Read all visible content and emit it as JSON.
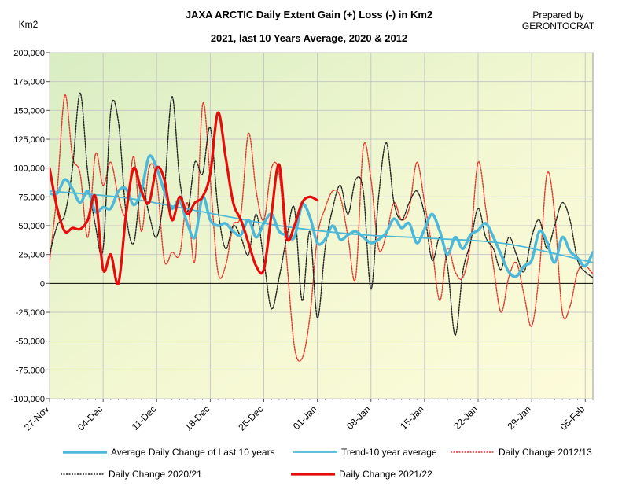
{
  "chart_data": {
    "type": "line",
    "title": "JAXA ARCTIC Daily Extent Gain (+) Loss (-) in Km2",
    "subtitle": "2021, last 10 Years Average, 2020 & 2012",
    "ylabel": "Km2",
    "credit_line1": "Prepared by",
    "credit_line2": "GERONTOCRAT",
    "ylim": [
      -100000,
      200000
    ],
    "xlim": [
      0,
      71
    ],
    "yticks": [
      {
        "v": 200000,
        "label": "200,000"
      },
      {
        "v": 175000,
        "label": "175,000"
      },
      {
        "v": 150000,
        "label": "150,000"
      },
      {
        "v": 125000,
        "label": "125,000"
      },
      {
        "v": 100000,
        "label": "100,000"
      },
      {
        "v": 75000,
        "label": "75,000"
      },
      {
        "v": 50000,
        "label": "50,000"
      },
      {
        "v": 25000,
        "label": "25,000"
      },
      {
        "v": 0,
        "label": "0"
      },
      {
        "v": -25000,
        "label": "-25,000"
      },
      {
        "v": -50000,
        "label": "-50,000"
      },
      {
        "v": -75000,
        "label": "-75,000"
      },
      {
        "v": -100000,
        "label": "-100,000"
      }
    ],
    "xticks": [
      {
        "d": 0,
        "label": "27-Nov"
      },
      {
        "d": 7,
        "label": "04-Dec"
      },
      {
        "d": 14,
        "label": "11-Dec"
      },
      {
        "d": 21,
        "label": "18-Dec"
      },
      {
        "d": 28,
        "label": "25-Dec"
      },
      {
        "d": 35,
        "label": "01-Jan"
      },
      {
        "d": 42,
        "label": "08-Jan"
      },
      {
        "d": 49,
        "label": "15-Jan"
      },
      {
        "d": 56,
        "label": "22-Jan"
      },
      {
        "d": 63,
        "label": "29-Jan"
      },
      {
        "d": 70,
        "label": "05-Feb"
      }
    ],
    "series": [
      {
        "name": "Average Daily Change of Last 10 years",
        "color": "#4db8d8",
        "width": 3.5,
        "dash": "",
        "x": [
          0,
          1,
          2,
          3,
          4,
          5,
          6,
          7,
          8,
          9,
          10,
          11,
          12,
          13,
          14,
          15,
          16,
          17,
          18,
          19,
          20,
          21,
          22,
          23,
          24,
          25,
          26,
          27,
          28,
          29,
          30,
          31,
          32,
          33,
          34,
          35,
          36,
          37,
          38,
          39,
          40,
          41,
          42,
          43,
          44,
          45,
          46,
          47,
          48,
          49,
          50,
          51,
          52,
          53,
          54,
          55,
          56,
          57,
          58,
          59,
          60,
          61,
          62,
          63,
          64,
          65,
          66,
          67,
          68,
          69,
          70,
          71
        ],
        "values": [
          78000,
          78000,
          90000,
          82000,
          70000,
          80000,
          62000,
          66000,
          65000,
          80000,
          82000,
          68000,
          80000,
          110000,
          100000,
          80000,
          65000,
          72000,
          52000,
          40000,
          75000,
          55000,
          50000,
          52000,
          45000,
          42000,
          55000,
          40000,
          52000,
          60000,
          45000,
          42000,
          40000,
          68000,
          58000,
          35000,
          38000,
          50000,
          38000,
          42000,
          45000,
          40000,
          35000,
          38000,
          44000,
          56000,
          48000,
          52000,
          35000,
          47000,
          60000,
          45000,
          25000,
          40000,
          30000,
          42000,
          46000,
          52000,
          40000,
          25000,
          10000,
          6000,
          15000,
          20000,
          45000,
          36000,
          18000,
          40000,
          28000,
          22000,
          15000,
          27000
        ]
      },
      {
        "name": "Trend-10 year average",
        "color": "#4db8d8",
        "width": 1.8,
        "dash": "",
        "x": [
          0,
          10,
          20,
          30,
          40,
          50,
          60,
          71
        ],
        "values": [
          80000,
          74000,
          62000,
          50000,
          42500,
          39000,
          34000,
          18000
        ]
      },
      {
        "name": "Daily Change 2012/13",
        "color": "#e6342c",
        "width": 1.4,
        "dash": "2,1.5",
        "x": [
          0,
          1,
          2,
          3,
          4,
          5,
          6,
          7,
          8,
          9,
          10,
          11,
          12,
          13,
          14,
          15,
          16,
          17,
          18,
          19,
          20,
          21,
          22,
          23,
          24,
          25,
          26,
          27,
          28,
          29,
          30,
          31,
          32,
          33,
          34,
          35,
          36,
          37,
          38,
          39,
          40,
          41,
          42,
          43,
          44,
          45,
          46,
          47,
          48,
          49,
          50,
          51,
          52,
          53,
          54,
          55,
          56,
          57,
          58,
          59,
          60,
          61,
          62,
          63,
          64,
          65,
          66,
          67,
          68,
          69,
          70,
          71
        ],
        "values": [
          18000,
          80000,
          163000,
          110000,
          95000,
          40000,
          112000,
          85000,
          105000,
          75000,
          60000,
          110000,
          45000,
          100000,
          90000,
          20000,
          27000,
          25000,
          70000,
          20000,
          155000,
          90000,
          10000,
          15000,
          50000,
          60000,
          130000,
          80000,
          55000,
          100000,
          95000,
          20000,
          -55000,
          -65000,
          -30000,
          40000,
          65000,
          80000,
          75000,
          40000,
          5000,
          118000,
          90000,
          30000,
          42000,
          70000,
          55000,
          65000,
          105000,
          70000,
          30000,
          -15000,
          30000,
          10000,
          5000,
          35000,
          105000,
          65000,
          15000,
          -25000,
          5000,
          18000,
          -10000,
          -37000,
          10000,
          95000,
          60000,
          -25000,
          -20000,
          10000,
          15000,
          8000
        ]
      },
      {
        "name": "Daily Change 2020/21",
        "color": "#222222",
        "width": 1.4,
        "dash": "2,1.5",
        "x": [
          0,
          1,
          2,
          3,
          4,
          5,
          6,
          7,
          8,
          9,
          10,
          11,
          12,
          13,
          14,
          15,
          16,
          17,
          18,
          19,
          20,
          21,
          22,
          23,
          24,
          25,
          26,
          27,
          28,
          29,
          30,
          31,
          32,
          33,
          34,
          35,
          36,
          37,
          38,
          39,
          40,
          41,
          42,
          43,
          44,
          45,
          46,
          47,
          48,
          49,
          50,
          51,
          52,
          53,
          54,
          55,
          56,
          57,
          58,
          59,
          60,
          61,
          62,
          63,
          64,
          65,
          66,
          67,
          68,
          69,
          70,
          71
        ],
        "values": [
          25000,
          50000,
          60000,
          100000,
          165000,
          95000,
          50000,
          30000,
          150000,
          140000,
          60000,
          35000,
          85000,
          60000,
          40000,
          80000,
          162000,
          90000,
          62000,
          105000,
          95000,
          135000,
          65000,
          30000,
          50000,
          40000,
          25000,
          60000,
          20000,
          -22000,
          5000,
          40000,
          65000,
          -15000,
          45000,
          -30000,
          30000,
          65000,
          85000,
          60000,
          90000,
          80000,
          -5000,
          75000,
          122000,
          70000,
          55000,
          70000,
          80000,
          60000,
          20000,
          40000,
          15000,
          -45000,
          10000,
          35000,
          65000,
          40000,
          30000,
          12000,
          40000,
          25000,
          10000,
          40000,
          55000,
          30000,
          50000,
          70000,
          55000,
          20000,
          10000,
          5000
        ]
      },
      {
        "name": "Daily Change 2021/22",
        "color": "#e60c0c",
        "width": 3.2,
        "dash": "",
        "x": [
          0,
          1,
          2,
          3,
          4,
          5,
          6,
          7,
          8,
          9,
          10,
          11,
          12,
          13,
          14,
          15,
          16,
          17,
          18,
          19,
          20,
          21,
          22,
          23,
          24,
          25,
          26,
          27,
          28,
          29,
          30,
          31,
          32,
          33,
          34,
          35
        ],
        "values": [
          100000,
          65000,
          45000,
          48000,
          47000,
          55000,
          75000,
          12000,
          25000,
          0,
          60000,
          100000,
          80000,
          70000,
          100000,
          90000,
          55000,
          75000,
          60000,
          70000,
          75000,
          95000,
          148000,
          110000,
          70000,
          55000,
          35000,
          15000,
          12000,
          60000,
          103000,
          40000,
          50000,
          70000,
          75000,
          72000
        ]
      }
    ],
    "legend": [
      {
        "label": "Average Daily Change of Last 10 years"
      },
      {
        "label": "Trend-10 year average"
      },
      {
        "label": "Daily Change 2012/13"
      },
      {
        "label": "Daily Change 2020/21"
      },
      {
        "label": "Daily Change 2021/22"
      }
    ]
  }
}
